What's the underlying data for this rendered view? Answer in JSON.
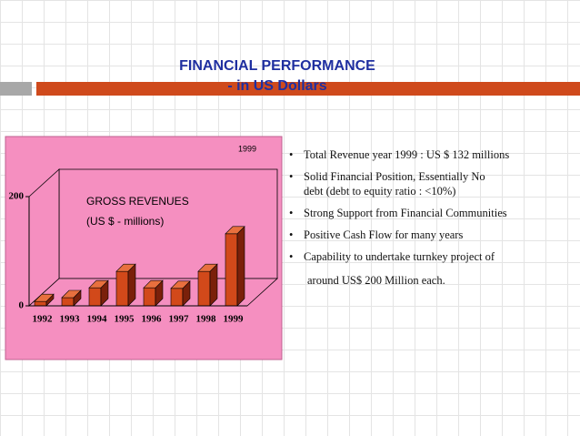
{
  "header": {
    "title": "FINANCIAL PERFORMANCE",
    "subtitle": "- in  US  Dollars"
  },
  "chart_data": {
    "type": "bar",
    "title": "GROSS REVENUES",
    "subtitle": "(US $  -  millions)",
    "annotation": "1999",
    "categories": [
      "1992",
      "1993",
      "1994",
      "1995",
      "1996",
      "1997",
      "1998",
      "1999"
    ],
    "values": [
      8,
      15,
      33,
      63,
      33,
      32,
      63,
      132
    ],
    "color": "#d2491a",
    "ylim": [
      0,
      200
    ],
    "yticks": [
      0,
      200
    ]
  },
  "bullets": [
    [
      "Total  Revenue  year 1999 : US $ 132 millions"
    ],
    [
      "Solid  Financial  Position, Essentially  No",
      "debt  (debt to equity ratio : <10%)"
    ],
    [
      "Strong Support from Financial Communities"
    ],
    [
      "Positive Cash Flow for many years"
    ],
    [
      "Capability to undertake turnkey project of",
      "around  US$  200  Million  each."
    ]
  ]
}
